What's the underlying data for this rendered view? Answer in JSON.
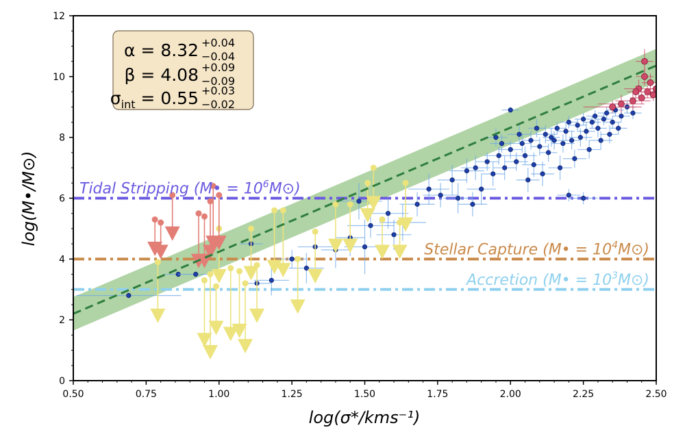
{
  "chart_data": {
    "type": "scatter",
    "xlabel": "log(σ*/kms⁻¹)",
    "ylabel": "log(M•/M⊙)",
    "xlim": [
      0.5,
      2.5
    ],
    "ylim": [
      0,
      12
    ],
    "x_ticks": [
      "0.50",
      "0.75",
      "1.00",
      "1.25",
      "1.50",
      "1.75",
      "2.00",
      "2.25",
      "2.50"
    ],
    "y_ticks": [
      "0",
      "2",
      "4",
      "6",
      "8",
      "10",
      "12"
    ],
    "grid": false,
    "fit": {
      "alpha": "8.32",
      "alpha_plus": "+0.04",
      "alpha_minus": "−0.04",
      "beta": "4.08",
      "beta_plus": "+0.09",
      "beta_minus": "−0.09",
      "sigma_int": "0.55",
      "sigma_plus": "+0.03",
      "sigma_minus": "−0.02",
      "alpha_value": 8.32,
      "beta_value": 4.08,
      "sigma_int_value": 0.55,
      "x_pivot": 2.0,
      "line_color": "#2e7d3e",
      "band_color": "#9cc98e"
    },
    "hlines": [
      {
        "y": 6,
        "color": "#6a5ae0",
        "label_main": "Tidal Stripping",
        "label_paren": "(M• = 10",
        "label_exp": "6",
        "label_end": "M⊙)"
      },
      {
        "y": 4,
        "color": "#c98a4a",
        "label_main": "Stellar Capture",
        "label_paren": "(M• = 10",
        "label_exp": "4",
        "label_end": "M⊙)"
      },
      {
        "y": 3,
        "color": "#8fd0ee",
        "label_main": "Accretion",
        "label_paren": "(M• = 10",
        "label_exp": "3",
        "label_end": "M⊙)"
      }
    ],
    "series": [
      {
        "name": "",
        "color": "#1f3fa8",
        "kind": "point",
        "points": [
          [
            0.69,
            2.8,
            0.18,
            0.1
          ],
          [
            0.86,
            3.5,
            0.05,
            0.1
          ],
          [
            0.92,
            3.5,
            0.06,
            0.1
          ],
          [
            1.11,
            4.5,
            0.04,
            0.4
          ],
          [
            1.13,
            3.2,
            0.05,
            0.4
          ],
          [
            1.18,
            3.3,
            0.06,
            0.5
          ],
          [
            1.25,
            4.0,
            0.05,
            0.3
          ],
          [
            1.33,
            4.4,
            0.06,
            0.4
          ],
          [
            1.45,
            4.7,
            0.05,
            0.6
          ],
          [
            1.52,
            5.1,
            0.08,
            0.4
          ],
          [
            1.58,
            5.5,
            0.07,
            0.5
          ],
          [
            1.63,
            5.2,
            0.08,
            0.6
          ],
          [
            1.68,
            5.8,
            0.06,
            0.4
          ],
          [
            1.72,
            6.3,
            0.07,
            0.5
          ],
          [
            1.76,
            6.1,
            0.06,
            0.4
          ],
          [
            1.8,
            6.6,
            0.05,
            0.5
          ],
          [
            1.85,
            6.9,
            0.06,
            0.4
          ],
          [
            1.88,
            7.0,
            0.05,
            0.4
          ],
          [
            1.9,
            6.3,
            0.05,
            0.5
          ],
          [
            1.92,
            7.2,
            0.04,
            0.3
          ],
          [
            1.94,
            6.8,
            0.04,
            0.4
          ],
          [
            1.96,
            7.4,
            0.05,
            0.3
          ],
          [
            1.98,
            7.0,
            0.04,
            0.4
          ],
          [
            2.0,
            8.9,
            0.03,
            0.1
          ],
          [
            2.0,
            7.6,
            0.04,
            0.3
          ],
          [
            2.02,
            7.2,
            0.04,
            0.3
          ],
          [
            2.04,
            7.8,
            0.03,
            0.3
          ],
          [
            2.05,
            7.4,
            0.04,
            0.3
          ],
          [
            2.07,
            7.9,
            0.03,
            0.3
          ],
          [
            2.08,
            7.1,
            0.04,
            0.4
          ],
          [
            2.1,
            7.7,
            0.03,
            0.3
          ],
          [
            2.12,
            8.1,
            0.04,
            0.3
          ],
          [
            2.13,
            7.5,
            0.03,
            0.3
          ],
          [
            2.15,
            7.9,
            0.03,
            0.3
          ],
          [
            2.16,
            8.3,
            0.03,
            0.2
          ],
          [
            2.18,
            7.8,
            0.04,
            0.3
          ],
          [
            2.19,
            8.2,
            0.03,
            0.3
          ],
          [
            2.2,
            8.5,
            0.03,
            0.2
          ],
          [
            2.21,
            7.9,
            0.03,
            0.3
          ],
          [
            2.23,
            8.4,
            0.03,
            0.2
          ],
          [
            2.24,
            8.0,
            0.04,
            0.3
          ],
          [
            2.25,
            8.6,
            0.03,
            0.2
          ],
          [
            2.26,
            8.2,
            0.03,
            0.3
          ],
          [
            2.28,
            8.5,
            0.03,
            0.2
          ],
          [
            2.29,
            8.7,
            0.03,
            0.2
          ],
          [
            2.3,
            8.3,
            0.03,
            0.3
          ],
          [
            2.32,
            8.6,
            0.03,
            0.2
          ],
          [
            2.33,
            8.8,
            0.03,
            0.2
          ],
          [
            2.35,
            8.5,
            0.03,
            0.2
          ],
          [
            2.36,
            8.9,
            0.03,
            0.2
          ],
          [
            2.38,
            8.7,
            0.03,
            0.2
          ],
          [
            2.4,
            9.0,
            0.03,
            0.2
          ],
          [
            2.42,
            8.8,
            0.03,
            0.2
          ],
          [
            2.22,
            7.3,
            0.04,
            0.3
          ],
          [
            2.27,
            7.6,
            0.04,
            0.3
          ],
          [
            2.31,
            7.9,
            0.04,
            0.3
          ],
          [
            2.17,
            7.0,
            0.04,
            0.4
          ],
          [
            2.11,
            6.8,
            0.04,
            0.4
          ],
          [
            2.06,
            6.6,
            0.04,
            0.4
          ],
          [
            2.14,
            8.0,
            0.03,
            0.3
          ],
          [
            2.09,
            8.3,
            0.03,
            0.3
          ],
          [
            2.03,
            8.1,
            0.04,
            0.3
          ],
          [
            1.97,
            7.8,
            0.04,
            0.3
          ],
          [
            1.95,
            8.0,
            0.04,
            0.3
          ],
          [
            2.34,
            8.1,
            0.03,
            0.3
          ],
          [
            2.37,
            8.3,
            0.03,
            0.2
          ],
          [
            2.25,
            6.0,
            0.05,
            0.2
          ],
          [
            2.2,
            6.1,
            0.04,
            0.2
          ],
          [
            1.87,
            5.8,
            0.05,
            0.4
          ],
          [
            1.82,
            6.0,
            0.05,
            0.5
          ],
          [
            1.6,
            4.8,
            0.06,
            0.5
          ],
          [
            1.48,
            5.9,
            0.08,
            0.6
          ],
          [
            1.5,
            4.4,
            0.07,
            0.9
          ],
          [
            1.4,
            4.3,
            0.05,
            0.6
          ],
          [
            1.3,
            3.7,
            0.06,
            0.5
          ]
        ]
      },
      {
        "name": "",
        "color": "#d04a6a",
        "kind": "point",
        "points": [
          [
            2.44,
            9.6,
            0.05,
            0.3
          ],
          [
            2.45,
            9.3,
            0.04,
            0.2
          ],
          [
            2.46,
            10.0,
            0.03,
            0.3
          ],
          [
            2.47,
            9.5,
            0.03,
            0.2
          ],
          [
            2.48,
            9.8,
            0.03,
            0.3
          ],
          [
            2.49,
            9.4,
            0.03,
            0.2
          ],
          [
            2.46,
            10.5,
            0.03,
            0.4
          ],
          [
            2.42,
            9.2,
            0.06,
            0.3
          ],
          [
            2.38,
            9.1,
            0.08,
            0.3
          ],
          [
            2.35,
            9.0,
            0.1,
            0.2
          ],
          [
            2.5,
            9.6,
            0.03,
            0.2
          ],
          [
            2.43,
            9.5,
            0.03,
            0.2
          ]
        ]
      },
      {
        "name": "",
        "color": "#ece37c",
        "kind": "limit",
        "limits": [
          [
            0.79,
            3.9,
            1.8
          ],
          [
            0.95,
            3.3,
            2.0
          ],
          [
            0.97,
            3.5,
            2.6
          ],
          [
            0.99,
            3.1,
            1.4
          ],
          [
            1.0,
            5.0,
            1.6
          ],
          [
            1.04,
            3.7,
            2.2
          ],
          [
            1.07,
            3.6,
            2.0
          ],
          [
            1.09,
            3.2,
            2.1
          ],
          [
            1.11,
            5.0,
            1.5
          ],
          [
            1.13,
            3.8,
            1.7
          ],
          [
            1.19,
            5.6,
            1.9
          ],
          [
            1.22,
            5.6,
            2.0
          ],
          [
            1.27,
            4.0,
            1.6
          ],
          [
            1.33,
            4.9,
            1.5
          ],
          [
            1.4,
            5.8,
            1.4
          ],
          [
            1.45,
            5.8,
            1.4
          ],
          [
            1.51,
            6.5,
            1.1
          ],
          [
            1.53,
            7.0,
            1.2
          ],
          [
            1.56,
            5.3,
            1.1
          ],
          [
            1.62,
            5.2,
            1.0
          ],
          [
            1.64,
            6.5,
            1.4
          ]
        ]
      },
      {
        "name": "",
        "color": "#e27e76",
        "kind": "limit",
        "limits": [
          [
            0.78,
            5.3,
            1.0
          ],
          [
            0.8,
            5.2,
            1.0
          ],
          [
            0.84,
            6.1,
            1.3
          ],
          [
            0.93,
            5.5,
            1.6
          ],
          [
            0.95,
            5.4,
            1.5
          ],
          [
            0.97,
            5.9,
            1.7
          ],
          [
            0.98,
            6.4,
            1.9
          ],
          [
            1.0,
            6.1,
            1.6
          ]
        ]
      }
    ]
  }
}
